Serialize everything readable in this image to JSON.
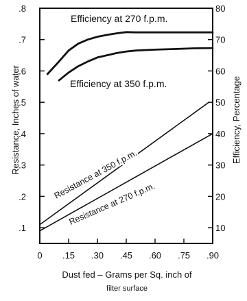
{
  "chart_data": {
    "type": "line",
    "xlabel_line1": "Dust fed – Grams per Sq. inch of",
    "xlabel_line2": "filter surface",
    "ylabel_left": "Resistance, Inches of water",
    "ylabel_right": "Efficiency, Percentage",
    "xlim": [
      0,
      0.9
    ],
    "ylim_left": [
      0.05,
      0.8
    ],
    "ylim_right": [
      5,
      80
    ],
    "x_ticks": [
      {
        "value": 0,
        "label": "0"
      },
      {
        "value": 0.15,
        "label": ".15"
      },
      {
        "value": 0.3,
        "label": ".30"
      },
      {
        "value": 0.45,
        "label": ".45"
      },
      {
        "value": 0.6,
        "label": ".60"
      },
      {
        "value": 0.75,
        "label": ".75"
      },
      {
        "value": 0.9,
        "label": ".90"
      }
    ],
    "y_left_ticks": [
      {
        "value": 0.1,
        "label": ".1"
      },
      {
        "value": 0.2,
        "label": ".2"
      },
      {
        "value": 0.3,
        "label": ".3"
      },
      {
        "value": 0.4,
        "label": ".4"
      },
      {
        "value": 0.5,
        "label": ".5"
      },
      {
        "value": 0.6,
        "label": ".6"
      },
      {
        "value": 0.7,
        "label": ".7"
      },
      {
        "value": 0.8,
        "label": ".8"
      }
    ],
    "y_right_ticks": [
      {
        "value": 10,
        "label": "10"
      },
      {
        "value": 20,
        "label": "20"
      },
      {
        "value": 30,
        "label": "30"
      },
      {
        "value": 40,
        "label": "40"
      },
      {
        "value": 50,
        "label": "50"
      },
      {
        "value": 60,
        "label": "60"
      },
      {
        "value": 70,
        "label": "70"
      },
      {
        "value": 80,
        "label": "80"
      }
    ],
    "grid": false,
    "series": [
      {
        "name": "Efficiency at 270 f.p.m.",
        "axis": "right",
        "x": [
          0.04,
          0.1,
          0.15,
          0.2,
          0.25,
          0.3,
          0.35,
          0.4,
          0.45,
          0.5,
          0.6,
          0.7,
          0.8,
          0.9
        ],
        "y": [
          59,
          63,
          66.5,
          68.7,
          70,
          70.9,
          71.5,
          72,
          72.4,
          72.3,
          72.3,
          72.3,
          72.3,
          72.3
        ]
      },
      {
        "name": "Efficiency at 350 f.p.m.",
        "axis": "right",
        "x": [
          0.1,
          0.15,
          0.2,
          0.25,
          0.3,
          0.35,
          0.4,
          0.45,
          0.5,
          0.6,
          0.7,
          0.8,
          0.9
        ],
        "y": [
          57,
          59.5,
          61.5,
          63,
          64.3,
          65,
          65.7,
          66.2,
          66.5,
          66.8,
          67,
          67.2,
          67.3
        ]
      },
      {
        "name": "Resistance at 350 f.p.m.",
        "axis": "left",
        "x": [
          0,
          0.88
        ],
        "y": [
          0.11,
          0.5
        ]
      },
      {
        "name": "Resistance at 270 f.p.m.",
        "axis": "left",
        "x": [
          0,
          0.9
        ],
        "y": [
          0.09,
          0.4
        ]
      }
    ],
    "annotations": {
      "eff270": "Efficiency at 270 f.p.m.",
      "eff350": "Efficiency at 350 f.p.m.",
      "res350": "Resistance at 350 f.p.m.",
      "res270": "Resistance at 270 f.p.m."
    }
  }
}
